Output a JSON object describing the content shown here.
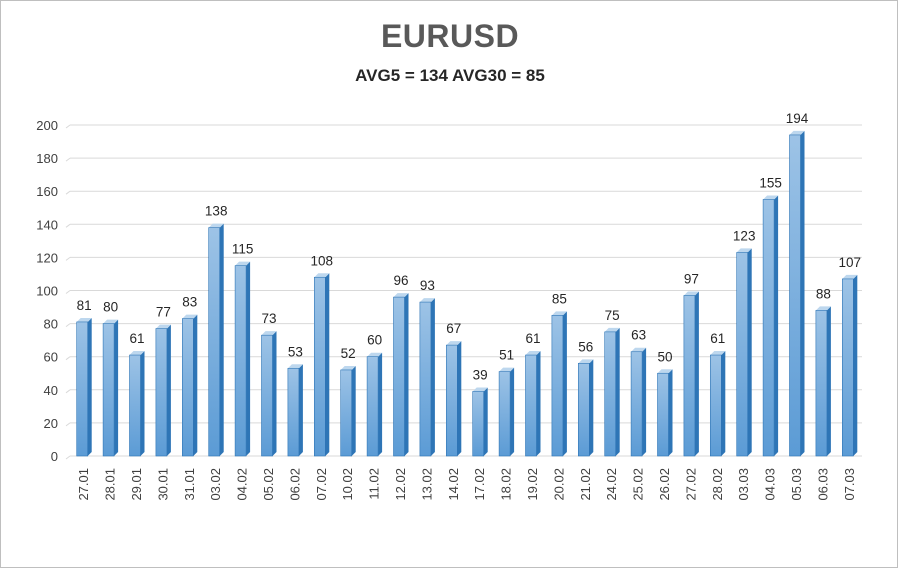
{
  "chart_data": {
    "type": "bar",
    "title": "EURUSD",
    "subtitle": "AVG5 = 134 AVG30 = 85",
    "categories": [
      "27.01",
      "28.01",
      "29.01",
      "30.01",
      "31.01",
      "03.02",
      "04.02",
      "05.02",
      "06.02",
      "07.02",
      "10.02",
      "11.02",
      "12.02",
      "13.02",
      "14.02",
      "17.02",
      "18.02",
      "19.02",
      "20.02",
      "21.02",
      "24.02",
      "25.02",
      "26.02",
      "27.02",
      "28.02",
      "03.03",
      "04.03",
      "05.03",
      "06.03",
      "07.03"
    ],
    "values": [
      81,
      80,
      61,
      77,
      83,
      138,
      115,
      73,
      53,
      108,
      52,
      60,
      96,
      93,
      67,
      39,
      51,
      61,
      85,
      56,
      75,
      63,
      50,
      97,
      61,
      123,
      155,
      194,
      88,
      107
    ],
    "yticks": [
      0,
      20,
      40,
      60,
      80,
      100,
      120,
      140,
      160,
      180,
      200
    ],
    "ylim": [
      0,
      200
    ],
    "grid": true,
    "legend": "none",
    "colors": {
      "bar_front_top": "#9dc3e6",
      "bar_front_bottom": "#5b9bd5",
      "bar_side": "#2e75b6",
      "bar_top": "#bdd7ee",
      "grid": "#d9d9d9"
    }
  }
}
